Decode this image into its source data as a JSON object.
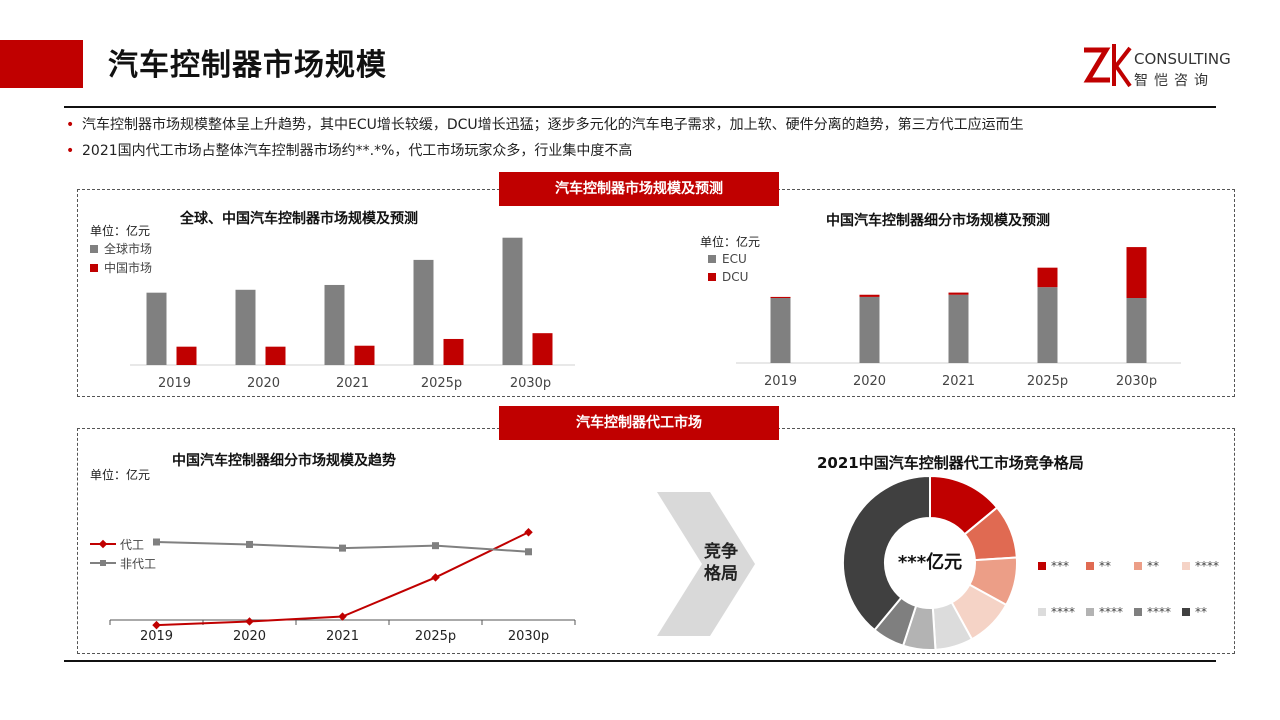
{
  "header": {
    "title": "汽车控制器市场规模",
    "logo_en": "CONSULTING",
    "logo_cn": "智恺咨询"
  },
  "bullets": [
    "汽车控制器市场规模整体呈上升趋势，其中ECU增长较缓，DCU增长迅猛；逐步多元化的汽车电子需求，加上软、硬件分离的趋势，第三方代工应运而生",
    "2021国内代工市场占整体汽车控制器市场约**.*%，代工市场玩家众多，行业集中度不高"
  ],
  "section1": {
    "banner": "汽车控制器市场规模及预测"
  },
  "section2": {
    "banner": "汽车控制器代工市场"
  },
  "colors": {
    "accent": "#c00000",
    "gray": "#808080",
    "dark": "#404040"
  },
  "chart_data": [
    {
      "type": "bar",
      "title": "全球、中国汽车控制器市场规模及预测",
      "unit": "单位：亿元",
      "categories": [
        "2019",
        "2020",
        "2021",
        "2025p",
        "2030p"
      ],
      "series": [
        {
          "name": "全球市场",
          "values": [
            75,
            78,
            83,
            109,
            132
          ],
          "color": "#808080"
        },
        {
          "name": "中国市场",
          "values": [
            19,
            19,
            20,
            27,
            33
          ],
          "color": "#c00000"
        }
      ],
      "ylim": [
        0,
        140
      ]
    },
    {
      "type": "bar",
      "stacked": true,
      "title": "中国汽车控制器细分市场规模及预测",
      "unit": "单位：亿元",
      "categories": [
        "2019",
        "2020",
        "2021",
        "2025p",
        "2030p"
      ],
      "series": [
        {
          "name": "ECU",
          "values": [
            60,
            61,
            63,
            70,
            60
          ],
          "color": "#808080"
        },
        {
          "name": "DCU",
          "values": [
            1,
            2,
            2,
            18,
            47
          ],
          "color": "#c00000"
        }
      ],
      "ylim": [
        0,
        120
      ]
    },
    {
      "type": "line",
      "title": "中国汽车控制器细分市场规模及趋势",
      "unit": "单位：亿元",
      "categories": [
        "2019",
        "2020",
        "2021",
        "2025p",
        "2030p"
      ],
      "series": [
        {
          "name": "代工",
          "values": [
            4,
            7,
            11,
            43,
            80
          ],
          "color": "#c00000"
        },
        {
          "name": "非代工",
          "values": [
            72,
            70,
            67,
            69,
            64
          ],
          "color": "#808080"
        }
      ],
      "ylim": [
        0,
        90
      ]
    },
    {
      "type": "pie",
      "title": "2021中国汽车控制器代工市场竞争格局",
      "center_label": "***亿元",
      "slices": [
        {
          "label": "***",
          "value": 14,
          "color": "#c00000"
        },
        {
          "label": "**",
          "value": 10,
          "color": "#e06a52"
        },
        {
          "label": "**",
          "value": 9,
          "color": "#ec9e87"
        },
        {
          "label": "****",
          "value": 9,
          "color": "#f5d3c6"
        },
        {
          "label": "****",
          "value": 7,
          "color": "#dcdcdc"
        },
        {
          "label": "****",
          "value": 6,
          "color": "#b3b3b3"
        },
        {
          "label": "****",
          "value": 6,
          "color": "#7f7f7f"
        },
        {
          "label": "**",
          "value": 39,
          "color": "#404040"
        }
      ]
    }
  ],
  "arrow": {
    "label_line1": "竞争",
    "label_line2": "格局"
  }
}
